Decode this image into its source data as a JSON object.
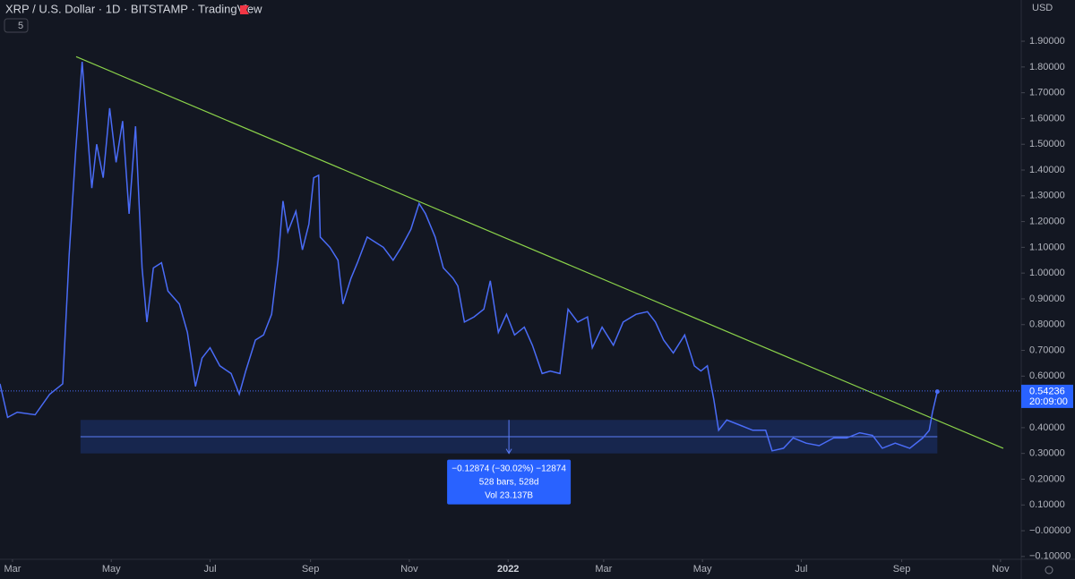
{
  "chart_data": {
    "type": "line",
    "title": "XRP / U.S. Dollar · 1D · BITSTAMP · TradingView",
    "indicator_badge": "5",
    "currency": "USD",
    "color": "#4a6cf7",
    "x": [
      -7.7,
      -3,
      3,
      14,
      23,
      31,
      35,
      39,
      43,
      46,
      49,
      52,
      56,
      60,
      64,
      68,
      72,
      76,
      80,
      83,
      87,
      92,
      96,
      103,
      108,
      113,
      117,
      122,
      128,
      135,
      140,
      144,
      150,
      155,
      160,
      164,
      167,
      170,
      175,
      179,
      183,
      186,
      189,
      190,
      196,
      201,
      204,
      209,
      213,
      219,
      224,
      229,
      235,
      240,
      246,
      251,
      255,
      261,
      266,
      272,
      275,
      279,
      285,
      291,
      295,
      300,
      305,
      310,
      316,
      321,
      327,
      332,
      338,
      343,
      349,
      355,
      358,
      364,
      371,
      377,
      385,
      392,
      397,
      402,
      408,
      415,
      421,
      425,
      429,
      433,
      436,
      441,
      449,
      457,
      465,
      469,
      476,
      482,
      490,
      498,
      507,
      515,
      523,
      531,
      537,
      545,
      554,
      562,
      566,
      568,
      571
    ],
    "values": [
      0.57,
      0.44,
      0.46,
      0.45,
      0.53,
      0.57,
      1.07,
      1.47,
      1.82,
      1.57,
      1.33,
      1.5,
      1.37,
      1.64,
      1.43,
      1.59,
      1.23,
      1.57,
      1.02,
      0.81,
      1.02,
      1.04,
      0.93,
      0.88,
      0.77,
      0.56,
      0.67,
      0.71,
      0.64,
      0.61,
      0.53,
      0.62,
      0.74,
      0.76,
      0.84,
      1.05,
      1.28,
      1.16,
      1.24,
      1.09,
      1.19,
      1.37,
      1.38,
      1.14,
      1.1,
      1.05,
      0.88,
      0.98,
      1.04,
      1.14,
      1.12,
      1.1,
      1.05,
      1.1,
      1.17,
      1.27,
      1.23,
      1.14,
      1.02,
      0.98,
      0.95,
      0.81,
      0.83,
      0.86,
      0.97,
      0.77,
      0.84,
      0.76,
      0.79,
      0.72,
      0.61,
      0.62,
      0.61,
      0.86,
      0.81,
      0.83,
      0.71,
      0.79,
      0.72,
      0.81,
      0.84,
      0.85,
      0.81,
      0.74,
      0.69,
      0.76,
      0.64,
      0.62,
      0.64,
      0.51,
      0.39,
      0.43,
      0.41,
      0.39,
      0.39,
      0.31,
      0.32,
      0.36,
      0.34,
      0.33,
      0.36,
      0.36,
      0.38,
      0.37,
      0.32,
      0.34,
      0.32,
      0.36,
      0.39,
      0.46,
      0.54
    ],
    "last_price": 0.54236,
    "last_price_label": "0.54236",
    "countdown": "20:09:00",
    "trendline": {
      "x": [
        39.3,
        611.7
      ],
      "values": [
        1.84,
        0.32
      ],
      "color": "#8bd34a"
    },
    "measure": {
      "x": [
        42,
        571
      ],
      "values": [
        0.43,
        0.3
      ],
      "mid": 0.365,
      "lines": [
        "−0.12874 (−30.02%) −12874",
        "528 bars, 528d",
        "Vol 23.137B"
      ]
    },
    "xlim": [
      -7.7,
      622.8
    ],
    "ylim": [
      -0.111,
      2.06
    ],
    "xticks": [
      {
        "value": 0,
        "label": "Mar"
      },
      {
        "value": 61,
        "label": "May"
      },
      {
        "value": 122,
        "label": "Jul"
      },
      {
        "value": 184,
        "label": "Sep"
      },
      {
        "value": 245,
        "label": "Nov"
      },
      {
        "value": 306,
        "label": "2022"
      },
      {
        "value": 365,
        "label": "Mar"
      },
      {
        "value": 426,
        "label": "May"
      },
      {
        "value": 487,
        "label": "Jul"
      },
      {
        "value": 549,
        "label": "Sep"
      },
      {
        "value": 610,
        "label": "Nov"
      }
    ],
    "yticks": [
      {
        "value": 1.9,
        "label": "1.90000"
      },
      {
        "value": 1.8,
        "label": "1.80000"
      },
      {
        "value": 1.7,
        "label": "1.70000"
      },
      {
        "value": 1.6,
        "label": "1.60000"
      },
      {
        "value": 1.5,
        "label": "1.50000"
      },
      {
        "value": 1.4,
        "label": "1.40000"
      },
      {
        "value": 1.3,
        "label": "1.30000"
      },
      {
        "value": 1.2,
        "label": "1.20000"
      },
      {
        "value": 1.1,
        "label": "1.10000"
      },
      {
        "value": 1.0,
        "label": "1.00000"
      },
      {
        "value": 0.9,
        "label": "0.90000"
      },
      {
        "value": 0.8,
        "label": "0.80000"
      },
      {
        "value": 0.7,
        "label": "0.70000"
      },
      {
        "value": 0.6,
        "label": "0.60000"
      },
      {
        "value": 0.5,
        "label": "0.50000"
      },
      {
        "value": 0.4,
        "label": "0.40000"
      },
      {
        "value": 0.3,
        "label": "0.30000"
      },
      {
        "value": 0.2,
        "label": "0.20000"
      },
      {
        "value": 0.1,
        "label": "0.10000"
      },
      {
        "value": 0,
        "label": "−0.00000"
      },
      {
        "value": -0.1,
        "label": "−0.10000"
      }
    ]
  }
}
